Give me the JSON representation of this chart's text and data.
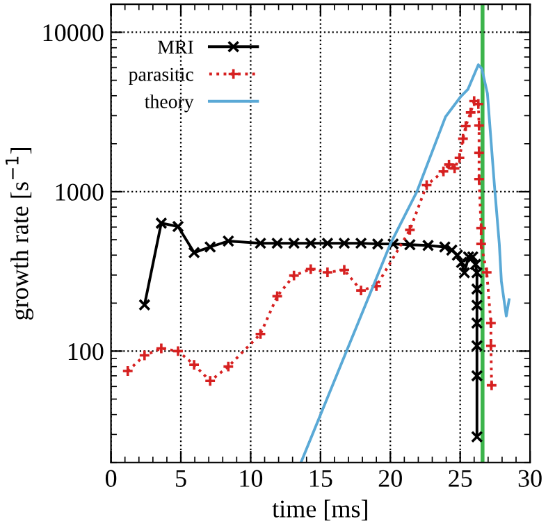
{
  "chart_data": {
    "type": "line",
    "xlabel": "time [ms]",
    "ylabel": "growth rate [s$^{−1}$]",
    "log": "y",
    "xlim": [
      0,
      30
    ],
    "ylim": [
      20,
      15000
    ],
    "xticks": [
      0,
      5,
      10,
      15,
      20,
      25,
      30
    ],
    "yticks": [
      100,
      1000,
      10000
    ],
    "grid": true,
    "legend": "top left",
    "series": [
      {
        "name": "MRI",
        "color": "#000000",
        "marker": "cross",
        "line_style": "solid",
        "x": [
          2.4,
          3.6,
          4.8,
          5.95,
          7.1,
          8.4,
          10.7,
          11.9,
          13.1,
          14.3,
          15.5,
          16.7,
          17.9,
          19.1,
          20.2,
          21.4,
          22.7,
          23.9,
          24.4,
          24.8,
          25.1,
          25.3,
          25.6,
          25.9,
          26.1,
          26.2,
          26.2,
          26.2,
          26.2,
          26.2,
          26.2,
          26.2
        ],
        "values": [
          195,
          635,
          605,
          415,
          450,
          490,
          475,
          475,
          475,
          475,
          475,
          475,
          475,
          470,
          470,
          465,
          460,
          450,
          430,
          400,
          360,
          310,
          390,
          390,
          350,
          310,
          245,
          194,
          150,
          108,
          70,
          29
        ]
      },
      {
        "name": "parasitic",
        "color": "#d62020",
        "marker": "plus",
        "line_style": "dotted",
        "x": [
          1.2,
          2.4,
          3.6,
          4.8,
          5.95,
          7.1,
          8.4,
          10.7,
          11.9,
          13.1,
          14.3,
          15.5,
          16.7,
          17.9,
          19.0,
          21.4,
          22.6,
          23.8,
          24.2,
          24.6,
          24.95,
          25.2,
          25.4,
          25.75,
          26.0,
          26.3,
          26.35,
          26.35,
          26.35,
          26.5,
          26.5,
          26.9,
          27.2,
          27.2,
          27.25
        ],
        "values": [
          75,
          94,
          104,
          100,
          82,
          65,
          80,
          128,
          221,
          298,
          327,
          312,
          323,
          240,
          256,
          576,
          1100,
          1340,
          1480,
          1400,
          1630,
          2150,
          2580,
          3140,
          3700,
          3550,
          2600,
          1750,
          1200,
          590,
          470,
          312,
          150,
          108,
          61
        ]
      },
      {
        "name": "theory",
        "color": "#5aa9d6",
        "marker": "none",
        "line_style": "solid",
        "x": [
          13.6,
          20.0,
          21.9,
          23.95,
          25.05,
          25.55,
          26.3,
          26.55,
          26.95,
          27.45,
          27.8,
          27.95,
          28.3,
          28.5
        ],
        "values": [
          20,
          470,
          1000,
          2950,
          3960,
          4380,
          6260,
          5900,
          4130,
          1100,
          470,
          274,
          166,
          210
        ]
      }
    ],
    "ref_lines": [
      {
        "axis": "x",
        "value": 26.6,
        "label": null,
        "color": "#3cb44b",
        "line_style": "solid"
      }
    ]
  }
}
